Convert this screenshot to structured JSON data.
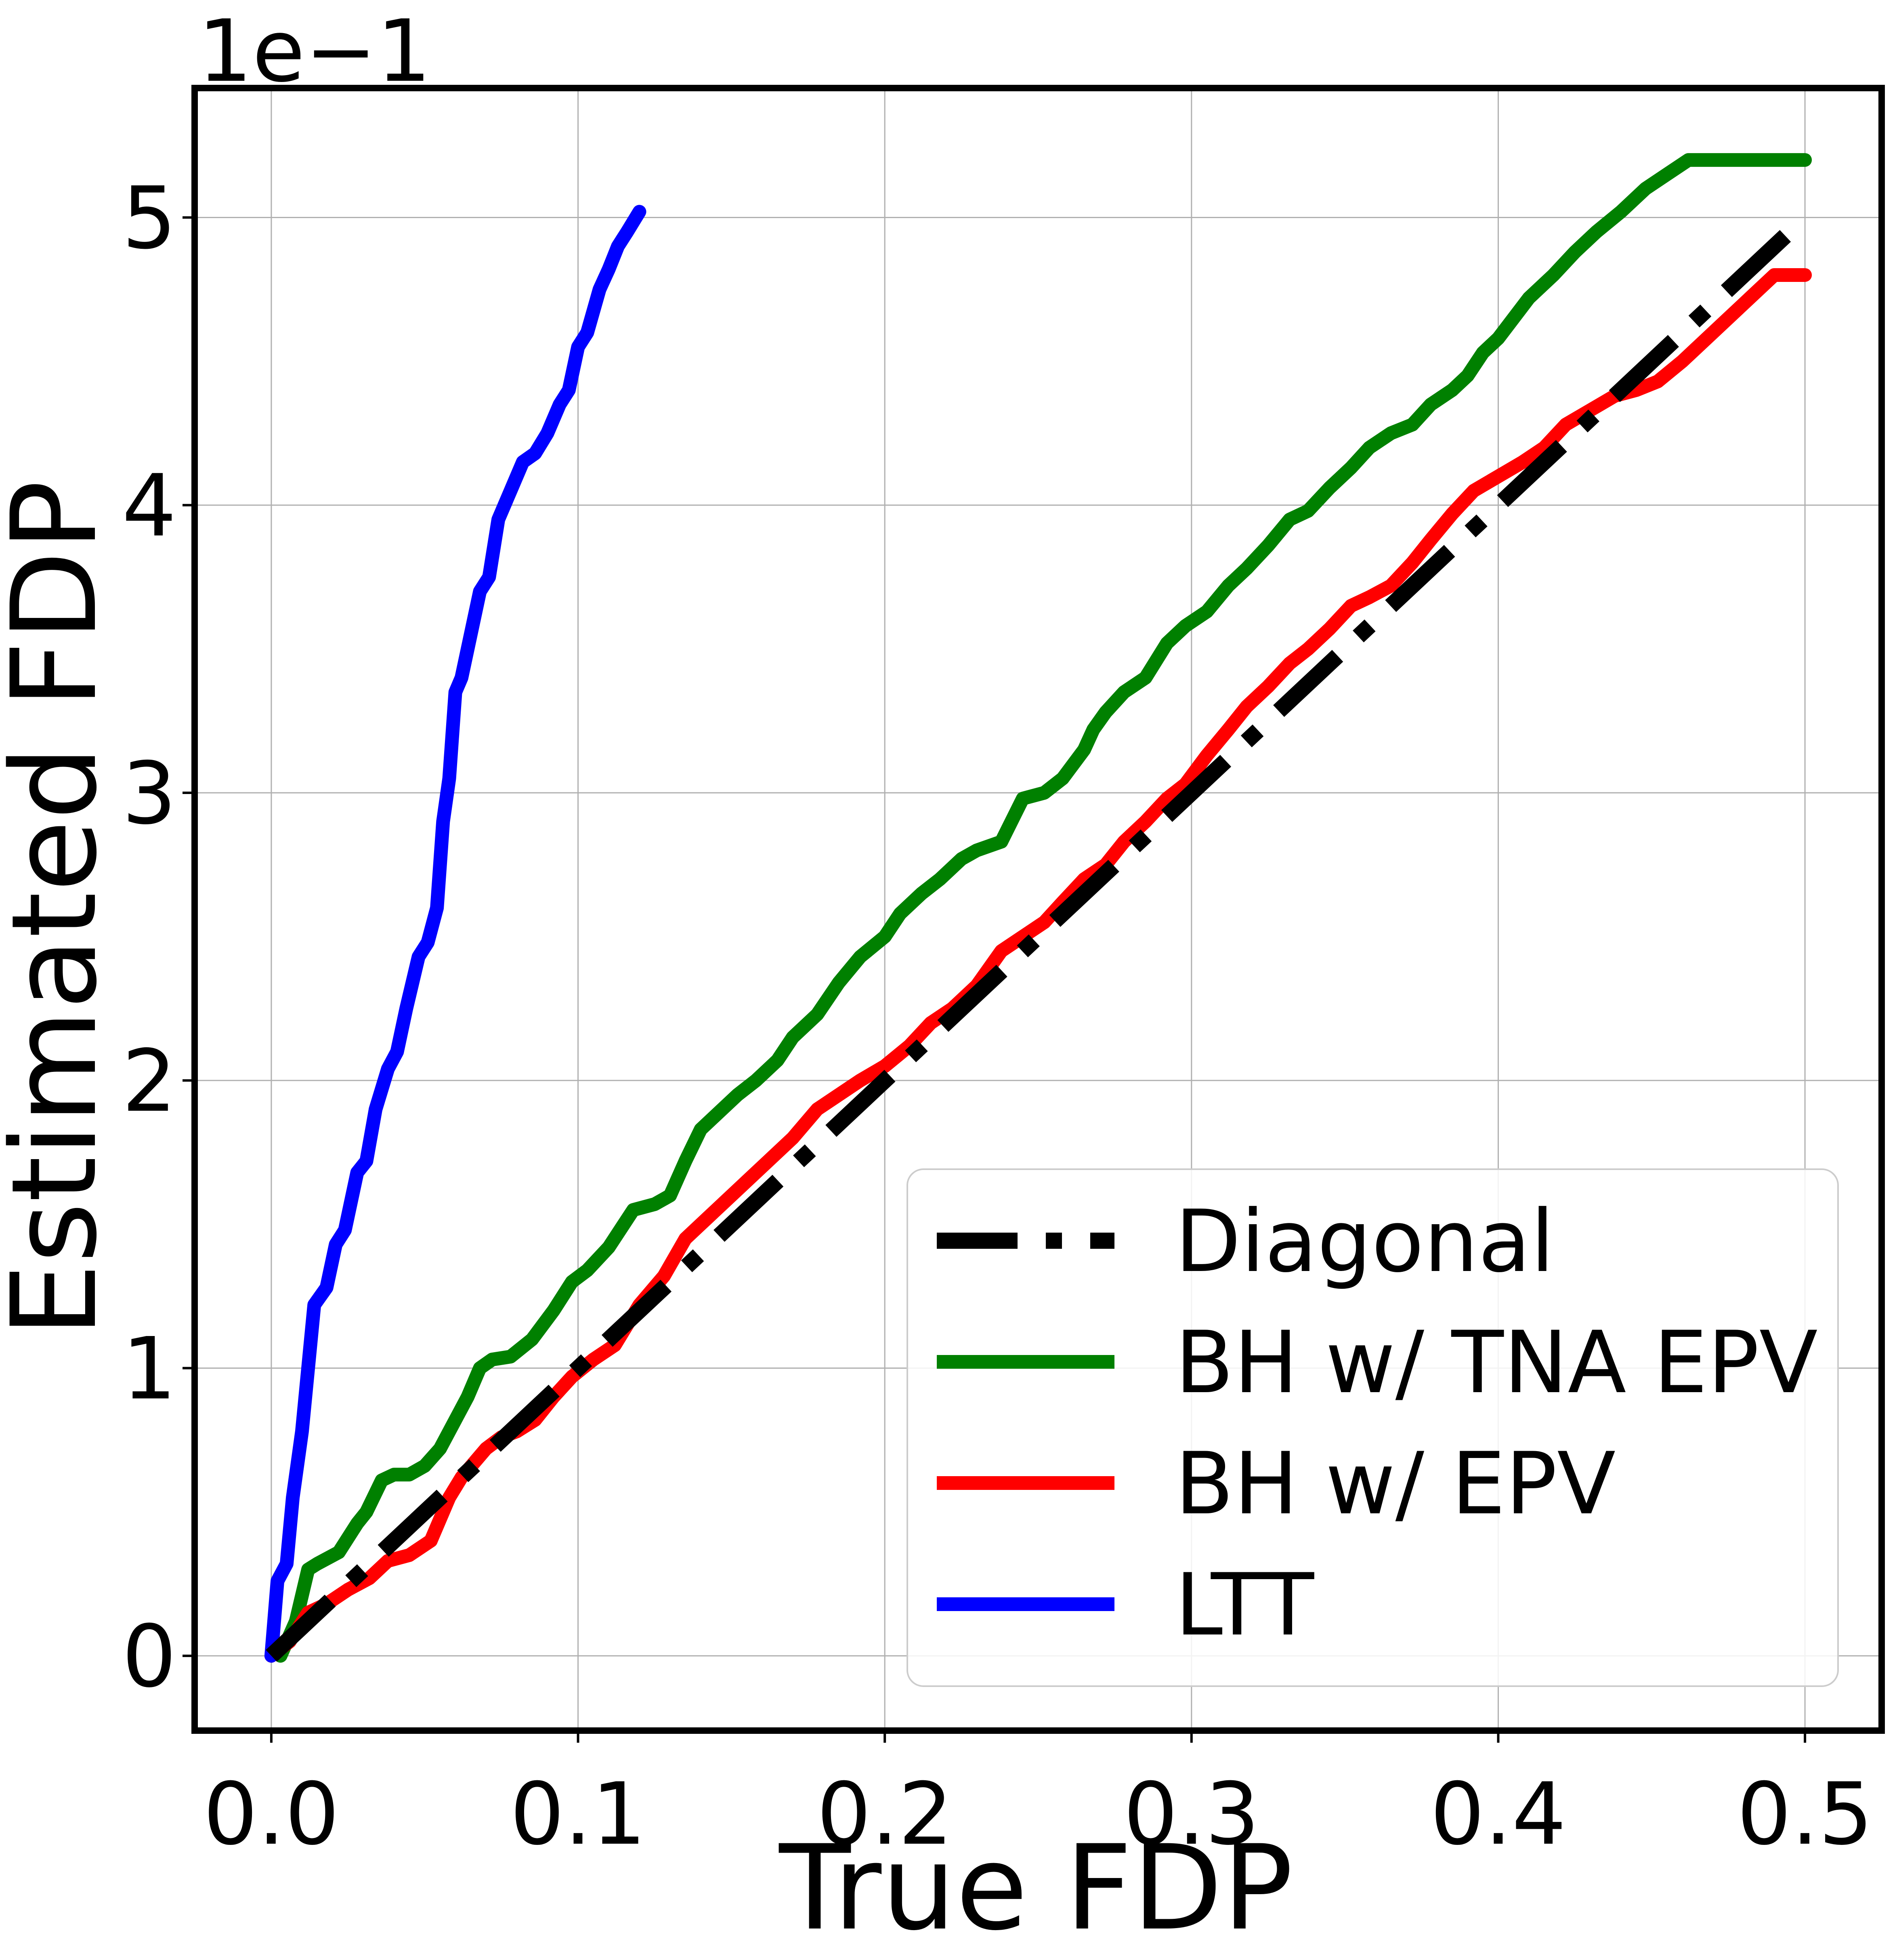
{
  "chart_data": {
    "type": "line",
    "xlabel": "True FDP",
    "ylabel": "Estimated FDP",
    "y_offset_label": "1e−1",
    "x_ticks": [
      "0.0",
      "0.1",
      "0.2",
      "0.3",
      "0.4",
      "0.5"
    ],
    "y_ticks": [
      "0",
      "1",
      "2",
      "3",
      "4",
      "5"
    ],
    "xlim": [
      -0.025,
      0.525
    ],
    "ylim": [
      -0.026,
      0.545
    ],
    "grid": true,
    "legend_position": "lower-right",
    "series": [
      {
        "name": "Diagonal",
        "color": "#000000",
        "style": "dashdot",
        "x": [
          0.0,
          0.5
        ],
        "y": [
          0.0,
          0.5
        ]
      },
      {
        "name": "BH w/ TNA EPV",
        "color": "#008000",
        "style": "solid",
        "x": [
          0.003,
          0.008,
          0.012,
          0.015,
          0.022,
          0.028,
          0.031,
          0.036,
          0.04,
          0.045,
          0.05,
          0.055,
          0.06,
          0.064,
          0.068,
          0.072,
          0.078,
          0.085,
          0.092,
          0.098,
          0.103,
          0.11,
          0.118,
          0.125,
          0.13,
          0.135,
          0.14,
          0.147,
          0.152,
          0.158,
          0.165,
          0.17,
          0.178,
          0.185,
          0.192,
          0.2,
          0.205,
          0.212,
          0.218,
          0.225,
          0.23,
          0.238,
          0.245,
          0.252,
          0.258,
          0.265,
          0.268,
          0.272,
          0.278,
          0.285,
          0.292,
          0.298,
          0.305,
          0.312,
          0.318,
          0.325,
          0.332,
          0.338,
          0.345,
          0.352,
          0.358,
          0.365,
          0.372,
          0.378,
          0.385,
          0.39,
          0.395,
          0.4,
          0.405,
          0.41,
          0.418,
          0.425,
          0.432,
          0.44,
          0.448,
          0.455,
          0.462,
          0.47,
          0.478,
          0.485,
          0.492,
          0.5
        ],
        "y": [
          0.0,
          0.012,
          0.03,
          0.032,
          0.036,
          0.046,
          0.05,
          0.061,
          0.063,
          0.063,
          0.066,
          0.072,
          0.082,
          0.09,
          0.1,
          0.103,
          0.104,
          0.11,
          0.12,
          0.13,
          0.134,
          0.142,
          0.155,
          0.157,
          0.16,
          0.172,
          0.183,
          0.19,
          0.195,
          0.2,
          0.207,
          0.215,
          0.223,
          0.234,
          0.243,
          0.25,
          0.258,
          0.265,
          0.27,
          0.277,
          0.28,
          0.283,
          0.298,
          0.3,
          0.305,
          0.315,
          0.322,
          0.328,
          0.335,
          0.34,
          0.352,
          0.358,
          0.363,
          0.372,
          0.378,
          0.386,
          0.395,
          0.398,
          0.406,
          0.413,
          0.42,
          0.425,
          0.428,
          0.435,
          0.44,
          0.445,
          0.453,
          0.458,
          0.465,
          0.472,
          0.48,
          0.488,
          0.495,
          0.502,
          0.51,
          0.515,
          0.52,
          0.52,
          0.52,
          0.52,
          0.52,
          0.52
        ]
      },
      {
        "name": "BH w/ EPV",
        "color": "#ff0000",
        "style": "solid",
        "x": [
          0.0,
          0.006,
          0.012,
          0.018,
          0.025,
          0.032,
          0.038,
          0.045,
          0.052,
          0.058,
          0.062,
          0.066,
          0.07,
          0.075,
          0.08,
          0.086,
          0.092,
          0.098,
          0.105,
          0.112,
          0.12,
          0.128,
          0.135,
          0.142,
          0.148,
          0.155,
          0.162,
          0.17,
          0.178,
          0.185,
          0.192,
          0.2,
          0.208,
          0.215,
          0.222,
          0.23,
          0.238,
          0.245,
          0.252,
          0.258,
          0.265,
          0.272,
          0.278,
          0.285,
          0.292,
          0.298,
          0.305,
          0.312,
          0.318,
          0.325,
          0.332,
          0.338,
          0.345,
          0.352,
          0.358,
          0.365,
          0.372,
          0.378,
          0.385,
          0.392,
          0.4,
          0.408,
          0.415,
          0.422,
          0.43,
          0.438,
          0.445,
          0.452,
          0.46,
          0.468,
          0.475,
          0.482,
          0.49,
          0.496,
          0.5
        ],
        "y": [
          0.0,
          0.005,
          0.015,
          0.018,
          0.023,
          0.027,
          0.033,
          0.035,
          0.04,
          0.055,
          0.062,
          0.067,
          0.072,
          0.076,
          0.078,
          0.082,
          0.09,
          0.097,
          0.103,
          0.108,
          0.122,
          0.132,
          0.145,
          0.152,
          0.158,
          0.165,
          0.172,
          0.18,
          0.19,
          0.195,
          0.2,
          0.205,
          0.212,
          0.22,
          0.225,
          0.233,
          0.245,
          0.25,
          0.255,
          0.262,
          0.27,
          0.275,
          0.283,
          0.29,
          0.298,
          0.303,
          0.313,
          0.322,
          0.33,
          0.337,
          0.345,
          0.35,
          0.357,
          0.365,
          0.368,
          0.372,
          0.38,
          0.388,
          0.397,
          0.405,
          0.41,
          0.415,
          0.42,
          0.428,
          0.433,
          0.438,
          0.44,
          0.443,
          0.45,
          0.458,
          0.465,
          0.472,
          0.48,
          0.48,
          0.48
        ]
      },
      {
        "name": "LTT",
        "color": "#0000ff",
        "style": "solid",
        "x": [
          0.0,
          0.002,
          0.005,
          0.007,
          0.01,
          0.012,
          0.014,
          0.018,
          0.021,
          0.024,
          0.028,
          0.031,
          0.034,
          0.038,
          0.041,
          0.044,
          0.048,
          0.051,
          0.054,
          0.056,
          0.058,
          0.06,
          0.062,
          0.065,
          0.068,
          0.071,
          0.074,
          0.078,
          0.082,
          0.086,
          0.09,
          0.094,
          0.097,
          0.1,
          0.103,
          0.107,
          0.11,
          0.113,
          0.116,
          0.12
        ],
        "y": [
          0.0,
          0.026,
          0.032,
          0.055,
          0.078,
          0.1,
          0.122,
          0.128,
          0.143,
          0.148,
          0.168,
          0.172,
          0.19,
          0.204,
          0.21,
          0.225,
          0.243,
          0.248,
          0.26,
          0.29,
          0.305,
          0.335,
          0.34,
          0.355,
          0.37,
          0.375,
          0.395,
          0.405,
          0.415,
          0.418,
          0.425,
          0.435,
          0.44,
          0.455,
          0.46,
          0.475,
          0.482,
          0.49,
          0.495,
          0.502
        ]
      }
    ]
  }
}
